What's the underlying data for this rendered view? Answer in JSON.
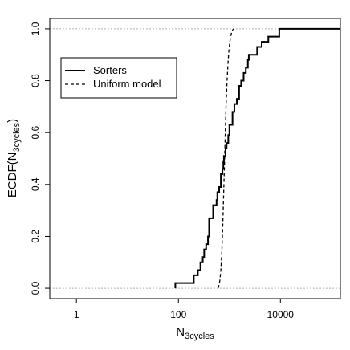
{
  "chart_data": {
    "type": "line",
    "title": "",
    "xlabel": "N",
    "xlabel_sub": "3cycles",
    "ylabel": "ECDF(N",
    "ylabel_sub": "3cycles",
    "ylabel_close": ")",
    "x_scale": "log10",
    "xlim": [
      0.3,
      150000
    ],
    "ylim": [
      -0.04,
      1.04
    ],
    "x_ticks": [
      1,
      100,
      10000
    ],
    "x_tick_labels": [
      "1",
      "100",
      "10000"
    ],
    "y_ticks": [
      0.0,
      0.2,
      0.4,
      0.6,
      0.8,
      1.0
    ],
    "y_tick_labels": [
      "0.0",
      "0.2",
      "0.4",
      "0.6",
      "0.8",
      "1.0"
    ],
    "reference_lines_y": [
      0,
      1
    ],
    "grid": false,
    "legend_position": "top-left",
    "series": [
      {
        "name": "Sorters",
        "style": "solid step",
        "color": "#000000",
        "x": [
          87,
          200,
          240,
          270,
          300,
          320,
          350,
          380,
          400,
          480,
          560,
          580,
          630,
          680,
          730,
          760,
          780,
          840,
          880,
          950,
          1000,
          1150,
          1250,
          1400,
          1550,
          1700,
          1900,
          2100,
          2300,
          2400,
          2600,
          2800,
          3100,
          3500,
          4300,
          5800,
          9500
        ],
        "y": [
          0.02,
          0.05,
          0.07,
          0.1,
          0.12,
          0.15,
          0.17,
          0.2,
          0.27,
          0.32,
          0.34,
          0.37,
          0.39,
          0.44,
          0.46,
          0.49,
          0.51,
          0.54,
          0.56,
          0.59,
          0.63,
          0.68,
          0.71,
          0.73,
          0.78,
          0.8,
          0.83,
          0.85,
          0.88,
          0.9,
          0.9,
          0.9,
          0.9,
          0.93,
          0.95,
          0.97,
          1.0
        ]
      },
      {
        "name": "Uniform model",
        "style": "dashed",
        "color": "#000000",
        "x": [
          600,
          620,
          650,
          680,
          710,
          740,
          770,
          800,
          830,
          860,
          900,
          940,
          980,
          1020,
          1060,
          1100,
          1150,
          1200
        ],
        "y": [
          0.0,
          0.01,
          0.03,
          0.07,
          0.14,
          0.24,
          0.36,
          0.48,
          0.6,
          0.71,
          0.8,
          0.87,
          0.92,
          0.95,
          0.97,
          0.985,
          0.995,
          1.0
        ]
      }
    ]
  }
}
